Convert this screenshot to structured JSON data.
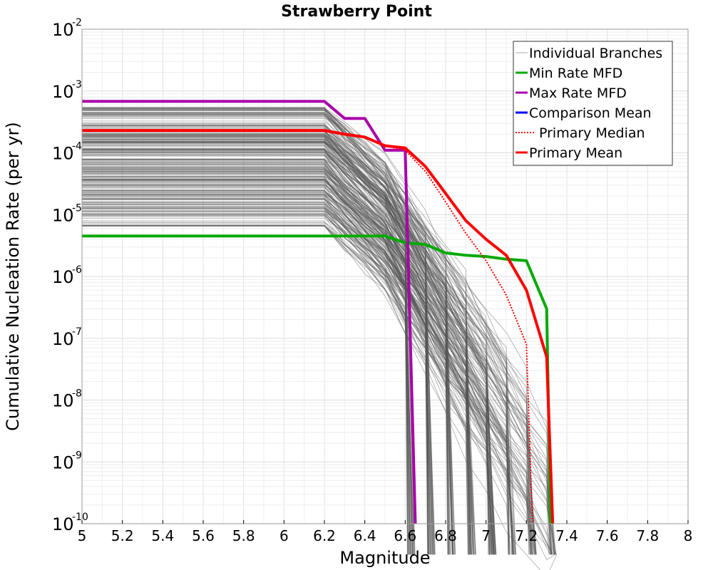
{
  "chart_data": {
    "type": "line",
    "title": "Strawberry Point",
    "xlabel": "Magnitude",
    "ylabel": "Cumulative Nucleation Rate (per yr)",
    "xlim": [
      5,
      8
    ],
    "ylim_log10": [
      -10,
      -2
    ],
    "y_scale": "log",
    "x_ticks": [
      5,
      5.2,
      5.4,
      5.6,
      5.8,
      6,
      6.2,
      6.4,
      6.6,
      6.8,
      7,
      7.2,
      7.4,
      7.6,
      7.8,
      8
    ],
    "x_tick_labels": [
      "5",
      "5.2",
      "5.4",
      "5.6",
      "5.8",
      "6",
      "6.2",
      "6.4",
      "6.6",
      "6.8",
      "7",
      "7.2",
      "7.4",
      "7.6",
      "7.8",
      "8"
    ],
    "y_tick_exponents": [
      -10,
      -9,
      -8,
      -7,
      -6,
      -5,
      -4,
      -3,
      -2
    ],
    "y_tick_labels": [
      {
        "base": "10",
        "exp": "-10"
      },
      {
        "base": "10",
        "exp": "-9"
      },
      {
        "base": "10",
        "exp": "-8"
      },
      {
        "base": "10",
        "exp": "-7"
      },
      {
        "base": "10",
        "exp": "-6"
      },
      {
        "base": "10",
        "exp": "-5"
      },
      {
        "base": "10",
        "exp": "-4"
      },
      {
        "base": "10",
        "exp": "-3"
      },
      {
        "base": "10",
        "exp": "-2"
      }
    ],
    "grid": true,
    "legend_position": "top-right",
    "series": [
      {
        "name": "Min Rate MFD",
        "color": "#00aa00",
        "style": "solid",
        "x": [
          5,
          6.5,
          6.6,
          6.7,
          6.8,
          6.9,
          7.0,
          7.1,
          7.2,
          7.3,
          7.32
        ],
        "y": [
          4.5e-06,
          4.5e-06,
          3.5e-06,
          3.3e-06,
          2.4e-06,
          2.2e-06,
          2.1e-06,
          1.9e-06,
          1.8e-06,
          3e-07,
          1e-10
        ]
      },
      {
        "name": "Max Rate MFD",
        "color": "#aa00aa",
        "style": "solid",
        "x": [
          5,
          6.2,
          6.3,
          6.4,
          6.5,
          6.6,
          6.65
        ],
        "y": [
          0.00068,
          0.00068,
          0.00036,
          0.00036,
          0.00011,
          0.00011,
          1e-10
        ]
      },
      {
        "name": "Comparison Mean",
        "color": "#0000ff",
        "style": "solid",
        "x": [],
        "y": []
      },
      {
        "name": "Primary Median",
        "color": "#ff0000",
        "style": "dotted",
        "x": [
          5,
          6.2,
          6.3,
          6.4,
          6.5,
          6.6,
          6.7,
          6.8,
          6.9,
          7.0,
          7.1,
          7.2,
          7.23
        ],
        "y": [
          0.00023,
          0.00023,
          0.0002,
          0.00018,
          0.00013,
          0.00011,
          5e-05,
          1.6e-05,
          5e-06,
          1.8e-06,
          5e-07,
          8e-08,
          1e-10
        ]
      },
      {
        "name": "Primary Mean",
        "color": "#ff0000",
        "style": "solid",
        "x": [
          5,
          6.2,
          6.3,
          6.4,
          6.5,
          6.6,
          6.7,
          6.8,
          6.9,
          7.0,
          7.1,
          7.2,
          7.3,
          7.33
        ],
        "y": [
          0.00023,
          0.00023,
          0.0002,
          0.00018,
          0.00013,
          0.00012,
          6e-05,
          2.2e-05,
          8e-06,
          4e-06,
          2.2e-06,
          6e-07,
          5e-08,
          1e-10
        ]
      }
    ],
    "branches": {
      "name": "Individual Branches",
      "color": "#555555",
      "count": 260
    }
  }
}
